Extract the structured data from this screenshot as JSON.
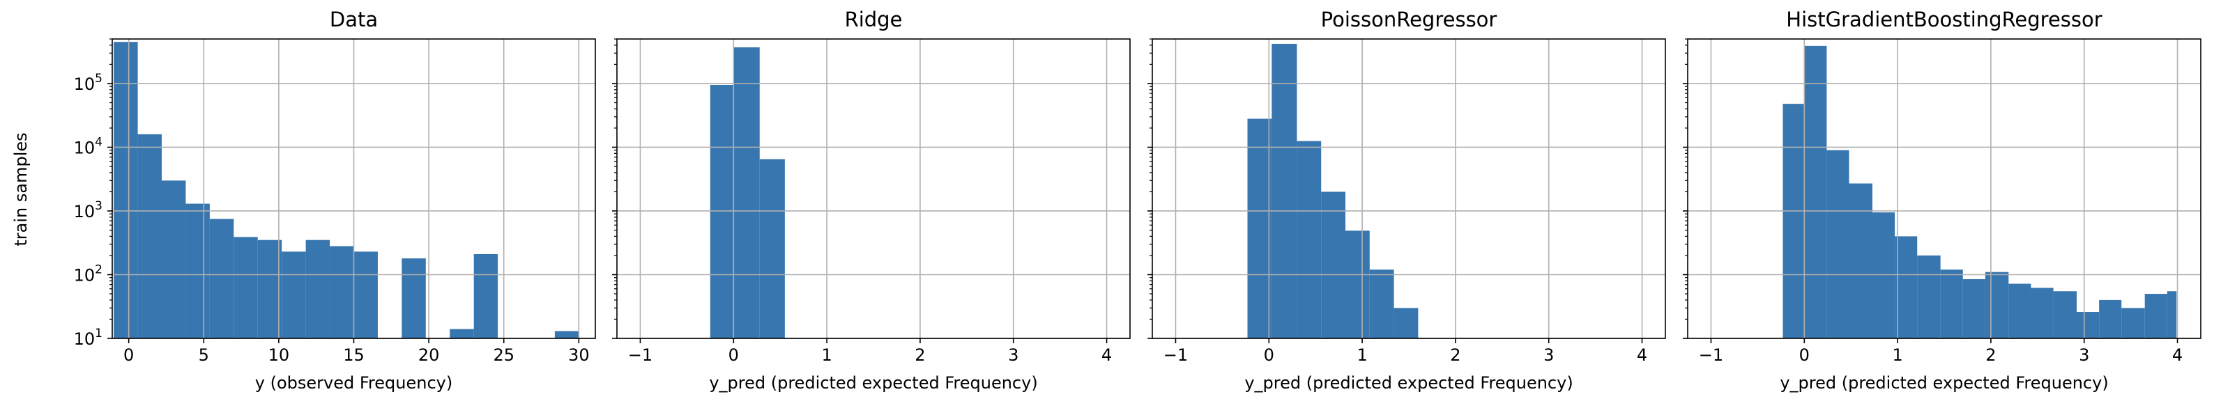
{
  "chart_data": [
    {
      "type": "bar",
      "title": "Data",
      "xlabel": "y (observed Frequency)",
      "ylabel": "train samples",
      "yscale": "log",
      "xlim": [
        -1.1,
        31.1
      ],
      "ylim": [
        10,
        500000
      ],
      "xticks": [
        "0",
        "5",
        "10",
        "15",
        "20",
        "25",
        "30"
      ],
      "xtick_values": [
        0,
        5,
        10,
        15,
        20,
        25,
        30
      ],
      "yticks": [
        10,
        100,
        1000,
        10000,
        100000
      ],
      "grid": true,
      "color": "#3876af",
      "bins": [
        {
          "x0": -1.0,
          "x1": 0.6,
          "y": 450000
        },
        {
          "x0": 0.6,
          "x1": 2.2,
          "y": 16000
        },
        {
          "x0": 2.2,
          "x1": 3.8,
          "y": 3000
        },
        {
          "x0": 3.8,
          "x1": 5.4,
          "y": 1300
        },
        {
          "x0": 5.4,
          "x1": 7.0,
          "y": 750
        },
        {
          "x0": 7.0,
          "x1": 8.6,
          "y": 390
        },
        {
          "x0": 8.6,
          "x1": 10.2,
          "y": 350
        },
        {
          "x0": 10.2,
          "x1": 11.8,
          "y": 230
        },
        {
          "x0": 11.8,
          "x1": 13.4,
          "y": 350
        },
        {
          "x0": 13.4,
          "x1": 15.0,
          "y": 280
        },
        {
          "x0": 15.0,
          "x1": 16.6,
          "y": 230
        },
        {
          "x0": 18.2,
          "x1": 19.8,
          "y": 180
        },
        {
          "x0": 21.4,
          "x1": 23.0,
          "y": 14
        },
        {
          "x0": 23.0,
          "x1": 24.6,
          "y": 210
        },
        {
          "x0": 28.4,
          "x1": 30.0,
          "y": 13
        }
      ]
    },
    {
      "type": "bar",
      "title": "Ridge",
      "xlabel": "y_pred (predicted expected Frequency)",
      "yscale": "log",
      "xlim": [
        -1.25,
        4.25
      ],
      "ylim": [
        10,
        500000
      ],
      "xticks": [
        "−1",
        "0",
        "1",
        "2",
        "3",
        "4"
      ],
      "xtick_values": [
        -1,
        0,
        1,
        2,
        3,
        4
      ],
      "yticks": [
        10,
        100,
        1000,
        10000,
        100000
      ],
      "grid": true,
      "color": "#3876af",
      "bins": [
        {
          "x0": -0.25,
          "x1": 0.0,
          "y": 95000
        },
        {
          "x0": 0.0,
          "x1": 0.28,
          "y": 370000
        },
        {
          "x0": 0.28,
          "x1": 0.55,
          "y": 6500
        }
      ]
    },
    {
      "type": "bar",
      "title": "PoissonRegressor",
      "xlabel": "y_pred (predicted expected Frequency)",
      "yscale": "log",
      "xlim": [
        -1.25,
        4.25
      ],
      "ylim": [
        10,
        500000
      ],
      "xticks": [
        "−1",
        "0",
        "1",
        "2",
        "3",
        "4"
      ],
      "xtick_values": [
        -1,
        0,
        1,
        2,
        3,
        4
      ],
      "yticks": [
        10,
        100,
        1000,
        10000,
        100000
      ],
      "grid": true,
      "color": "#3876af",
      "bins": [
        {
          "x0": -0.23,
          "x1": 0.03,
          "y": 28000
        },
        {
          "x0": 0.03,
          "x1": 0.3,
          "y": 420000
        },
        {
          "x0": 0.3,
          "x1": 0.56,
          "y": 12500
        },
        {
          "x0": 0.56,
          "x1": 0.82,
          "y": 2000
        },
        {
          "x0": 0.82,
          "x1": 1.08,
          "y": 490
        },
        {
          "x0": 1.08,
          "x1": 1.34,
          "y": 120
        },
        {
          "x0": 1.34,
          "x1": 1.6,
          "y": 30
        }
      ]
    },
    {
      "type": "bar",
      "title": "HistGradientBoostingRegressor",
      "xlabel": "y_pred (predicted expected Frequency)",
      "yscale": "log",
      "xlim": [
        -1.25,
        4.25
      ],
      "ylim": [
        10,
        500000
      ],
      "xticks": [
        "−1",
        "0",
        "1",
        "2",
        "3",
        "4"
      ],
      "xtick_values": [
        -1,
        0,
        1,
        2,
        3,
        4
      ],
      "yticks": [
        10,
        100,
        1000,
        10000,
        100000
      ],
      "grid": true,
      "color": "#3876af",
      "bins": [
        {
          "x0": -0.23,
          "x1": 0.0,
          "y": 48000
        },
        {
          "x0": 0.0,
          "x1": 0.24,
          "y": 390000
        },
        {
          "x0": 0.24,
          "x1": 0.48,
          "y": 9000
        },
        {
          "x0": 0.48,
          "x1": 0.73,
          "y": 2700
        },
        {
          "x0": 0.73,
          "x1": 0.97,
          "y": 950
        },
        {
          "x0": 0.97,
          "x1": 1.21,
          "y": 400
        },
        {
          "x0": 1.21,
          "x1": 1.46,
          "y": 200
        },
        {
          "x0": 1.46,
          "x1": 1.7,
          "y": 120
        },
        {
          "x0": 1.7,
          "x1": 1.94,
          "y": 85
        },
        {
          "x0": 1.94,
          "x1": 2.19,
          "y": 110
        },
        {
          "x0": 2.19,
          "x1": 2.43,
          "y": 72
        },
        {
          "x0": 2.43,
          "x1": 2.67,
          "y": 62
        },
        {
          "x0": 2.67,
          "x1": 2.92,
          "y": 55
        },
        {
          "x0": 2.92,
          "x1": 3.16,
          "y": 26
        },
        {
          "x0": 3.16,
          "x1": 3.4,
          "y": 40
        },
        {
          "x0": 3.4,
          "x1": 3.65,
          "y": 30
        },
        {
          "x0": 3.65,
          "x1": 3.89,
          "y": 50
        },
        {
          "x0": 3.89,
          "x1": 3.99,
          "y": 55
        }
      ]
    }
  ]
}
